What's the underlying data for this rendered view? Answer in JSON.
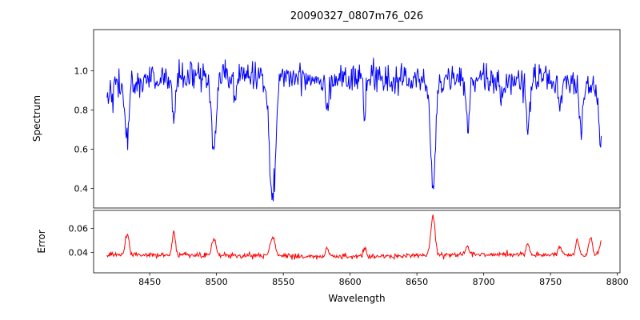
{
  "figure": {
    "title": "20090327_0807m76_026",
    "xlabel": "Wavelength"
  },
  "chart_data": {
    "type": "line",
    "title": "20090327_0807m76_026",
    "xlabel": "Wavelength",
    "legend": "none",
    "grid": false,
    "xlim": [
      8408,
      8802
    ],
    "x_ticks": [
      8450,
      8500,
      8550,
      8600,
      8650,
      8700,
      8750,
      8800
    ],
    "x_sampling": {
      "start": 8418,
      "end": 8788,
      "step": 0.5
    },
    "noise_seed": 42,
    "panels": [
      {
        "name": "spectrum",
        "ylabel": "Spectrum",
        "ylim": [
          0.3,
          1.21
        ],
        "y_ticks": [
          0.4,
          0.6,
          0.8,
          1.0
        ],
        "tick_decimals": 1,
        "line_color": "#0000ff",
        "continuum_level": 0.965,
        "noise_sigma": 0.038,
        "absorption_lines": [
          {
            "center": 8433,
            "depth": 0.3,
            "width": 1.4
          },
          {
            "center": 8468,
            "depth": 0.22,
            "width": 1.2
          },
          {
            "center": 8498,
            "depth": 0.4,
            "width": 1.8
          },
          {
            "center": 8514,
            "depth": 0.12,
            "width": 1.2
          },
          {
            "center": 8542,
            "depth": 0.63,
            "width": 2.2
          },
          {
            "center": 8583,
            "depth": 0.15,
            "width": 1.2
          },
          {
            "center": 8611,
            "depth": 0.14,
            "width": 1.2
          },
          {
            "center": 8662,
            "depth": 0.52,
            "width": 2.0
          },
          {
            "center": 8688,
            "depth": 0.22,
            "width": 1.4
          },
          {
            "center": 8713,
            "depth": 0.1,
            "width": 1.2
          },
          {
            "center": 8733,
            "depth": 0.26,
            "width": 1.3
          },
          {
            "center": 8757,
            "depth": 0.12,
            "width": 1.2
          },
          {
            "center": 8773,
            "depth": 0.22,
            "width": 1.3
          },
          {
            "center": 8788,
            "depth": 0.28,
            "width": 1.5
          }
        ]
      },
      {
        "name": "error",
        "ylabel": "Error",
        "ylim": [
          0.023,
          0.075
        ],
        "y_ticks": [
          0.04,
          0.06
        ],
        "tick_decimals": 2,
        "line_color": "#ff0000",
        "baseline_level": 0.0372,
        "noise_sigma": 0.0011,
        "error_spikes": [
          {
            "center": 8433,
            "amp": 0.018,
            "width": 1.4
          },
          {
            "center": 8468,
            "amp": 0.02,
            "width": 1.2
          },
          {
            "center": 8498,
            "amp": 0.014,
            "width": 1.5
          },
          {
            "center": 8542,
            "amp": 0.016,
            "width": 1.8
          },
          {
            "center": 8583,
            "amp": 0.007,
            "width": 1.2
          },
          {
            "center": 8611,
            "amp": 0.006,
            "width": 1.2
          },
          {
            "center": 8662,
            "amp": 0.033,
            "width": 1.6
          },
          {
            "center": 8688,
            "amp": 0.008,
            "width": 1.2
          },
          {
            "center": 8733,
            "amp": 0.009,
            "width": 1.2
          },
          {
            "center": 8757,
            "amp": 0.007,
            "width": 1.2
          },
          {
            "center": 8770,
            "amp": 0.013,
            "width": 1.2
          },
          {
            "center": 8780,
            "amp": 0.015,
            "width": 1.2
          },
          {
            "center": 8788,
            "amp": 0.012,
            "width": 1.2
          }
        ]
      }
    ]
  }
}
